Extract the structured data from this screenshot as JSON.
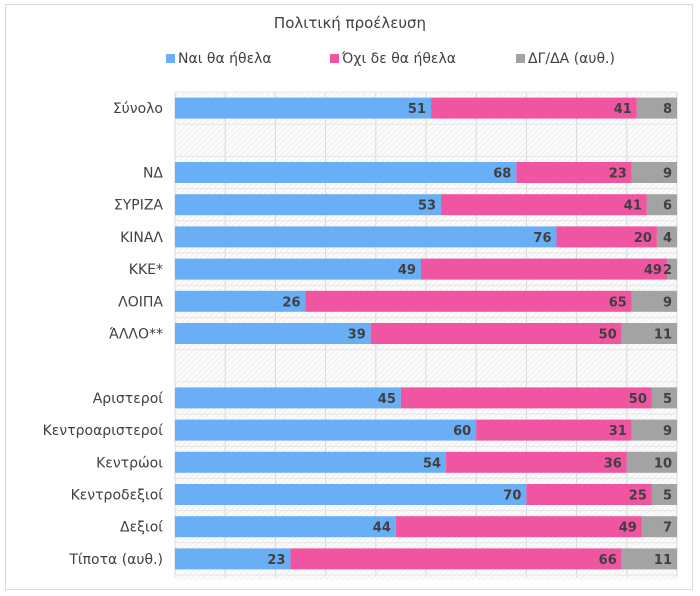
{
  "chart_data": {
    "type": "bar",
    "orientation": "horizontal",
    "stacked": true,
    "title": "Πολιτική προέλευση",
    "xlabel": "",
    "ylabel": "",
    "xlim": [
      0,
      100
    ],
    "grid": true,
    "legend_position": "top",
    "categories": [
      "Σύνολο",
      "",
      "ΝΔ",
      "ΣΥΡΙΖΑ",
      "ΚΙΝΑΛ",
      "ΚΚΕ*",
      "ΛΟΙΠΑ",
      "ΆΛΛΟ**",
      "",
      "Αριστεροί",
      "Κεντροαριστεροί",
      "Κεντρώοι",
      "Κεντροδεξιοί",
      "Δεξιοί",
      "Τίποτα (αυθ.)"
    ],
    "series": [
      {
        "name": "Ναι θα ήθελα",
        "color": "#6aaef5",
        "values": [
          51,
          null,
          68,
          53,
          76,
          49,
          26,
          39,
          null,
          45,
          60,
          54,
          70,
          44,
          23
        ]
      },
      {
        "name": "Όχι δε θα ήθελα",
        "color": "#ef55a0",
        "values": [
          41,
          null,
          23,
          41,
          20,
          49,
          65,
          50,
          null,
          50,
          31,
          36,
          25,
          49,
          66
        ]
      },
      {
        "name": "ΔΓ/ΔΑ (αυθ.)",
        "color": "#a3a3a3",
        "values": [
          8,
          null,
          9,
          6,
          4,
          2,
          9,
          11,
          null,
          5,
          9,
          10,
          5,
          7,
          11
        ]
      }
    ]
  }
}
